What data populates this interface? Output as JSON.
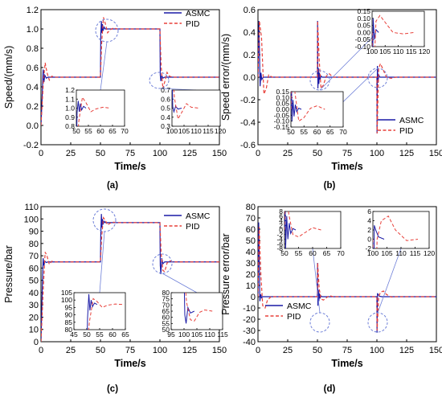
{
  "colors": {
    "asmc": "#1a1aa6",
    "pid": "#e8403a",
    "callout": "#6f80d8",
    "axis": "#000000"
  },
  "chart_data": [
    {
      "panel": "(a)",
      "type": "line",
      "xlabel": "Time/s",
      "ylabel": "Speed/(mm/s)",
      "xlim": [
        0,
        150
      ],
      "ylim": [
        -0.2,
        1.2
      ],
      "xticks": [
        "0",
        "25",
        "50",
        "75",
        "100",
        "125",
        "150"
      ],
      "yticks": [
        "-0.2",
        "0.0",
        "0.2",
        "0.4",
        "0.6",
        "0.8",
        "1.0",
        "1.2"
      ],
      "legend": {
        "position": "top-right",
        "entries": [
          "ASMC",
          "PID"
        ]
      },
      "series": [
        {
          "name": "ASMC",
          "style": "solid",
          "points": [
            [
              0,
              0
            ],
            [
              1,
              0.3
            ],
            [
              1.8,
              0.58
            ],
            [
              2.5,
              0.45
            ],
            [
              3.2,
              0.52
            ],
            [
              4.5,
              0.49
            ],
            [
              6,
              0.5
            ],
            [
              50,
              0.5
            ],
            [
              50.3,
              0.95
            ],
            [
              50.8,
              1.08
            ],
            [
              51.2,
              0.96
            ],
            [
              51.7,
              1.05
            ],
            [
              52.2,
              0.98
            ],
            [
              53,
              1.02
            ],
            [
              54,
              1.0
            ],
            [
              80,
              1.0
            ],
            [
              100,
              1.0
            ],
            [
              100.3,
              0.52
            ],
            [
              100.8,
              0.46
            ],
            [
              101.5,
              0.52
            ],
            [
              102.5,
              0.49
            ],
            [
              104,
              0.5
            ],
            [
              150,
              0.5
            ]
          ]
        },
        {
          "name": "PID",
          "style": "dashed",
          "points": [
            [
              0,
              0
            ],
            [
              2,
              0.45
            ],
            [
              3.5,
              0.65
            ],
            [
              5,
              0.55
            ],
            [
              7,
              0.47
            ],
            [
              9,
              0.51
            ],
            [
              12,
              0.5
            ],
            [
              50,
              0.5
            ],
            [
              51,
              0.85
            ],
            [
              52.5,
              1.12
            ],
            [
              54,
              1.06
            ],
            [
              56,
              0.96
            ],
            [
              58,
              0.99
            ],
            [
              61,
              1.01
            ],
            [
              64,
              1.0
            ],
            [
              100,
              1.0
            ],
            [
              101,
              0.62
            ],
            [
              102.5,
              0.38
            ],
            [
              104,
              0.45
            ],
            [
              106,
              0.55
            ],
            [
              108,
              0.51
            ],
            [
              111,
              0.5
            ],
            [
              150,
              0.5
            ]
          ]
        }
      ],
      "insets": [
        {
          "xlim": [
            50,
            70
          ],
          "ylim": [
            0.8,
            1.2
          ],
          "xticks": [
            "50",
            "55",
            "60",
            "65",
            "70"
          ],
          "yticks": [
            "0.8",
            "0.9",
            "1.0",
            "1.1",
            "1.2"
          ]
        },
        {
          "xlim": [
            100,
            120
          ],
          "ylim": [
            0.3,
            0.7
          ],
          "xticks": [
            "100",
            "105",
            "110",
            "115",
            "120"
          ],
          "yticks": [
            "0.3",
            "0.4",
            "0.5",
            "0.6",
            "0.7"
          ]
        }
      ]
    },
    {
      "panel": "(b)",
      "type": "line",
      "xlabel": "Time/s",
      "ylabel": "Speed error/(mm/s)",
      "xlim": [
        0,
        150
      ],
      "ylim": [
        -0.6,
        0.6
      ],
      "xticks": [
        "0",
        "25",
        "50",
        "75",
        "100",
        "125",
        "150"
      ],
      "yticks": [
        "-0.6",
        "-0.4",
        "-0.2",
        "0.0",
        "0.2",
        "0.4",
        "0.6"
      ],
      "legend": {
        "position": "bottom-right",
        "entries": [
          "ASMC",
          "PID"
        ]
      },
      "series": [
        {
          "name": "ASMC",
          "style": "solid",
          "points": [
            [
              0,
              0
            ],
            [
              0.8,
              0.5
            ],
            [
              1.8,
              -0.08
            ],
            [
              2.5,
              0.04
            ],
            [
              3.2,
              -0.02
            ],
            [
              4.5,
              0
            ],
            [
              50,
              0
            ],
            [
              50.1,
              0.5
            ],
            [
              50.4,
              -0.1
            ],
            [
              50.8,
              0.08
            ],
            [
              51.2,
              -0.06
            ],
            [
              51.7,
              0.04
            ],
            [
              52.2,
              -0.02
            ],
            [
              53,
              0.01
            ],
            [
              54,
              0
            ],
            [
              100,
              0
            ],
            [
              100.1,
              -0.5
            ],
            [
              100.4,
              0.1
            ],
            [
              100.9,
              -0.05
            ],
            [
              101.5,
              0.02
            ],
            [
              102.5,
              0
            ],
            [
              150,
              0
            ]
          ]
        },
        {
          "name": "PID",
          "style": "dashed",
          "points": [
            [
              0,
              0
            ],
            [
              1.2,
              0.5
            ],
            [
              3,
              0.35
            ],
            [
              5,
              -0.15
            ],
            [
              7,
              -0.1
            ],
            [
              9,
              0.02
            ],
            [
              12,
              0
            ],
            [
              50,
              0
            ],
            [
              50.2,
              0.5
            ],
            [
              51.5,
              0.15
            ],
            [
              53,
              -0.1
            ],
            [
              55,
              -0.07
            ],
            [
              57.5,
              0.01
            ],
            [
              60,
              0.03
            ],
            [
              63,
              0
            ],
            [
              100,
              0
            ],
            [
              100.2,
              -0.5
            ],
            [
              101.5,
              0.08
            ],
            [
              103,
              0.12
            ],
            [
              105.5,
              0.06
            ],
            [
              108,
              0
            ],
            [
              112,
              -0.01
            ],
            [
              116,
              0
            ],
            [
              150,
              0
            ]
          ]
        }
      ],
      "insets": [
        {
          "xlim": [
            100,
            120
          ],
          "ylim": [
            -0.1,
            0.15
          ],
          "xticks": [
            "100",
            "105",
            "110",
            "115",
            "120"
          ],
          "yticks": [
            "-0.10",
            "-0.05",
            "0.00",
            "0.05",
            "0.10",
            "0.15"
          ]
        },
        {
          "xlim": [
            50,
            70
          ],
          "ylim": [
            -0.15,
            0.15
          ],
          "xticks": [
            "50",
            "55",
            "60",
            "65",
            "70"
          ],
          "yticks": [
            "-0.15",
            "-0.10",
            "-0.05",
            "0.00",
            "0.05",
            "0.10",
            "0.15"
          ]
        }
      ]
    },
    {
      "panel": "(c)",
      "type": "line",
      "xlabel": "Time/s",
      "ylabel": "Pressure/bar",
      "xlim": [
        0,
        150
      ],
      "ylim": [
        0,
        110
      ],
      "xticks": [
        "0",
        "25",
        "50",
        "75",
        "100",
        "125",
        "150"
      ],
      "yticks": [
        "0",
        "10",
        "20",
        "30",
        "40",
        "50",
        "60",
        "70",
        "80",
        "90",
        "100",
        "110"
      ],
      "legend": {
        "position": "top-right",
        "entries": [
          "ASMC",
          "PID"
        ]
      },
      "series": [
        {
          "name": "ASMC",
          "style": "solid",
          "points": [
            [
              0,
              0
            ],
            [
              1,
              40
            ],
            [
              1.8,
              68
            ],
            [
              2.5,
              62
            ],
            [
              3.2,
              65.5
            ],
            [
              4.5,
              64.5
            ],
            [
              6,
              65
            ],
            [
              50,
              65
            ],
            [
              50.3,
              88
            ],
            [
              50.8,
              104
            ],
            [
              51.2,
              93
            ],
            [
              51.7,
              100
            ],
            [
              52.2,
              95.5
            ],
            [
              53,
              98
            ],
            [
              54,
              97
            ],
            [
              100,
              97
            ],
            [
              100.3,
              62
            ],
            [
              100.8,
              55
            ],
            [
              101.5,
              68
            ],
            [
              102.5,
              63.5
            ],
            [
              104,
              65
            ],
            [
              150,
              65
            ]
          ]
        },
        {
          "name": "PID",
          "style": "dashed",
          "points": [
            [
              0,
              0
            ],
            [
              2,
              45
            ],
            [
              3.5,
              73
            ],
            [
              5,
              70
            ],
            [
              7,
              63
            ],
            [
              9,
              65.5
            ],
            [
              12,
              65
            ],
            [
              50,
              65
            ],
            [
              51,
              85
            ],
            [
              52.5,
              101
            ],
            [
              54,
              99
            ],
            [
              56,
              95
            ],
            [
              58,
              96.5
            ],
            [
              61,
              97.3
            ],
            [
              64,
              97
            ],
            [
              100,
              97
            ],
            [
              101,
              72
            ],
            [
              102.5,
              58
            ],
            [
              104,
              57
            ],
            [
              106,
              64
            ],
            [
              108,
              66
            ],
            [
              111,
              65
            ],
            [
              150,
              65
            ]
          ]
        }
      ],
      "insets": [
        {
          "xlim": [
            45,
            65
          ],
          "ylim": [
            80,
            105
          ],
          "xticks": [
            "45",
            "50",
            "55",
            "60",
            "65"
          ],
          "yticks": [
            "80",
            "85",
            "90",
            "95",
            "100",
            "105"
          ]
        },
        {
          "xlim": [
            95,
            115
          ],
          "ylim": [
            50,
            80
          ],
          "xticks": [
            "95",
            "100",
            "105",
            "110",
            "115"
          ],
          "yticks": [
            "50",
            "55",
            "60",
            "65",
            "70",
            "75",
            "80"
          ]
        }
      ]
    },
    {
      "panel": "(d)",
      "type": "line",
      "xlabel": "Time/s",
      "ylabel": "Pressure error/bar",
      "xlim": [
        0,
        150
      ],
      "ylim": [
        -40,
        80
      ],
      "xticks": [
        "0",
        "25",
        "50",
        "75",
        "100",
        "125",
        "150"
      ],
      "yticks": [
        "-40",
        "-30",
        "-20",
        "-10",
        "0",
        "10",
        "20",
        "30",
        "40",
        "50",
        "60",
        "70",
        "80"
      ],
      "legend": {
        "position": "bottom-left",
        "entries": [
          "ASMC",
          "PID"
        ]
      },
      "series": [
        {
          "name": "ASMC",
          "style": "solid",
          "points": [
            [
              0,
              0
            ],
            [
              0.6,
              66
            ],
            [
              1.6,
              -4
            ],
            [
              2.3,
              2
            ],
            [
              3,
              -1
            ],
            [
              4,
              0
            ],
            [
              50,
              0
            ],
            [
              50.1,
              30
            ],
            [
              50.4,
              -8
            ],
            [
              50.8,
              6
            ],
            [
              51.2,
              -4
            ],
            [
              51.7,
              3
            ],
            [
              52.2,
              -1.5
            ],
            [
              53,
              0.6
            ],
            [
              54,
              0
            ],
            [
              100,
              0
            ],
            [
              100.1,
              -32
            ],
            [
              100.5,
              3
            ],
            [
              101,
              2
            ],
            [
              102,
              0.5
            ],
            [
              104,
              0
            ],
            [
              150,
              0
            ]
          ]
        },
        {
          "name": "PID",
          "style": "dashed",
          "points": [
            [
              0,
              0
            ],
            [
              1,
              62
            ],
            [
              2.5,
              18
            ],
            [
              4,
              -8
            ],
            [
              6,
              -10
            ],
            [
              8,
              -3
            ],
            [
              11,
              0
            ],
            [
              50,
              0
            ],
            [
              50.2,
              30
            ],
            [
              51.5,
              7
            ],
            [
              53,
              -2
            ],
            [
              55,
              -3
            ],
            [
              57.5,
              -1
            ],
            [
              60,
              1
            ],
            [
              63,
              0
            ],
            [
              100,
              0
            ],
            [
              100.2,
              -30
            ],
            [
              101.5,
              0
            ],
            [
              103,
              4
            ],
            [
              105.5,
              5
            ],
            [
              108,
              2
            ],
            [
              112,
              -0.3
            ],
            [
              116,
              0
            ],
            [
              150,
              0
            ]
          ]
        }
      ],
      "insets": [
        {
          "xlim": [
            50,
            70
          ],
          "ylim": [
            -8,
            8
          ],
          "xticks": [
            "50",
            "55",
            "60",
            "65",
            "70"
          ],
          "yticks": [
            "-8",
            "-6",
            "-4",
            "-2",
            "0",
            "2",
            "4",
            "6",
            "8"
          ]
        },
        {
          "xlim": [
            100,
            120
          ],
          "ylim": [
            -2,
            6
          ],
          "xticks": [
            "100",
            "105",
            "110",
            "115",
            "120"
          ],
          "yticks": [
            "-2",
            "0",
            "2",
            "4",
            "6"
          ]
        }
      ]
    }
  ]
}
